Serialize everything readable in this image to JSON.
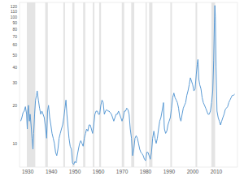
{
  "chart_data": {
    "type": "line",
    "log": "y",
    "grid": false,
    "color": "#5b9bd5",
    "xlim": [
      1926.5,
      2019
    ],
    "xticks": [
      1930,
      1940,
      1950,
      1960,
      1970,
      1980,
      1990,
      2000,
      2010
    ],
    "ylim": [
      6.5,
      130
    ],
    "yticks": [
      10,
      20,
      30,
      40,
      50,
      60,
      70,
      80,
      90,
      100,
      110,
      120
    ],
    "recessions": [
      [
        1929.6,
        1933.2
      ],
      [
        1937.4,
        1938.5
      ],
      [
        1945.1,
        1945.8
      ],
      [
        1948.9,
        1949.8
      ],
      [
        1953.5,
        1954.4
      ],
      [
        1957.6,
        1958.3
      ],
      [
        1960.3,
        1961.1
      ],
      [
        1969.9,
        1970.9
      ],
      [
        1973.9,
        1975.2
      ],
      [
        1980.0,
        1980.5
      ],
      [
        1981.5,
        1982.9
      ],
      [
        1990.5,
        1991.2
      ],
      [
        2001.2,
        2001.9
      ],
      [
        2007.9,
        2009.5
      ]
    ],
    "x": [
      1927.0,
      1927.5,
      1928,
      1928.5,
      1929,
      1929.5,
      1929.8,
      1930,
      1930.3,
      1930.7,
      1931,
      1931.4,
      1931.8,
      1932.2,
      1932.5,
      1932.9,
      1933.3,
      1933.7,
      1934,
      1934.5,
      1935,
      1935.5,
      1936,
      1936.5,
      1937,
      1937.6,
      1938,
      1938.4,
      1938.8,
      1939.3,
      1939.8,
      1940.3,
      1940.8,
      1941.3,
      1941.8,
      1942.3,
      1942.8,
      1943.3,
      1943.8,
      1944.3,
      1944.8,
      1945.3,
      1945.8,
      1946.2,
      1946.6,
      1947,
      1947.5,
      1948,
      1948.5,
      1949,
      1949.5,
      1950,
      1950.5,
      1951,
      1951.5,
      1952,
      1952.5,
      1953,
      1953.5,
      1954,
      1954.5,
      1955,
      1955.5,
      1956,
      1956.5,
      1957,
      1957.5,
      1958,
      1958.5,
      1959,
      1959.5,
      1960,
      1960.5,
      1961,
      1961.5,
      1962,
      1962.5,
      1963,
      1963.5,
      1964,
      1964.5,
      1965,
      1965.5,
      1966,
      1966.5,
      1967,
      1967.5,
      1968,
      1968.5,
      1969,
      1969.5,
      1970,
      1970.5,
      1971,
      1971.5,
      1972,
      1972.5,
      1973,
      1973.5,
      1974,
      1974.5,
      1975,
      1975.5,
      1976,
      1976.5,
      1977,
      1977.5,
      1978,
      1978.5,
      1979,
      1979.5,
      1980,
      1980.5,
      1981,
      1981.5,
      1982,
      1982.5,
      1983,
      1983.5,
      1984,
      1984.5,
      1985,
      1985.5,
      1986,
      1986.5,
      1987,
      1987.6,
      1987.9,
      1988,
      1988.5,
      1989,
      1989.5,
      1990,
      1990.5,
      1991,
      1991.5,
      1992,
      1992.5,
      1993,
      1993.5,
      1994,
      1994.5,
      1995,
      1995.5,
      1996,
      1996.5,
      1997,
      1997.5,
      1998,
      1998.5,
      1999,
      1999.5,
      2000,
      2000.5,
      2001,
      2001.5,
      2001.9,
      2002.2,
      2002.6,
      2003,
      2003.5,
      2004,
      2004.5,
      2005,
      2005.5,
      2006,
      2006.5,
      2007,
      2007.5,
      2008,
      2008.5,
      2008.9,
      2009.2,
      2009.4,
      2009.6,
      2009.9,
      2010.3,
      2010.8,
      2011.3,
      2011.8,
      2012.3,
      2012.8,
      2013.3,
      2013.8,
      2014.3,
      2014.8,
      2015.3,
      2015.8,
      2016.3,
      2016.8,
      2017.3,
      2017.8
    ],
    "values": [
      15,
      16,
      17.5,
      18,
      19.5,
      17,
      13,
      18,
      20,
      15,
      17,
      14,
      11,
      9,
      12,
      17,
      22,
      24,
      26,
      22,
      19,
      17,
      18,
      17,
      16,
      13,
      11,
      18,
      20,
      16,
      14,
      12,
      11,
      10,
      8.5,
      8,
      9,
      11,
      12,
      13,
      14,
      16,
      19,
      22,
      17,
      14,
      11,
      9.5,
      9,
      7,
      6.8,
      7.2,
      7,
      8,
      9,
      10,
      10.5,
      10,
      9.5,
      11,
      12,
      13,
      12.5,
      14,
      14,
      13,
      12,
      14,
      17,
      18,
      18,
      17,
      17,
      20,
      22,
      21,
      17,
      18,
      18.5,
      18,
      18,
      17.5,
      17,
      16,
      15,
      16,
      17,
      17,
      18,
      17,
      16,
      15,
      16,
      18,
      18,
      19,
      18.5,
      17,
      13,
      11,
      8,
      9,
      11,
      11.5,
      11,
      10,
      9,
      8.5,
      8.3,
      8,
      7.5,
      7.3,
      8.5,
      8.5,
      8,
      7.5,
      8.5,
      11,
      12.5,
      11,
      10,
      11,
      13,
      15,
      16,
      18,
      21,
      14,
      13,
      12,
      12.5,
      14,
      15,
      16,
      19,
      23,
      25,
      23,
      22,
      21,
      19,
      16,
      15,
      17,
      19,
      20,
      21,
      24,
      26,
      29,
      33,
      31,
      29,
      26,
      27,
      35,
      42,
      46,
      32,
      29,
      27,
      23,
      21,
      20,
      19,
      18,
      17,
      17,
      18,
      21,
      26,
      45,
      90,
      123,
      100,
      40,
      18,
      16,
      15,
      14,
      15,
      16,
      17,
      18.5,
      19,
      19.5,
      21,
      22,
      23,
      24,
      24,
      24.5
    ]
  }
}
